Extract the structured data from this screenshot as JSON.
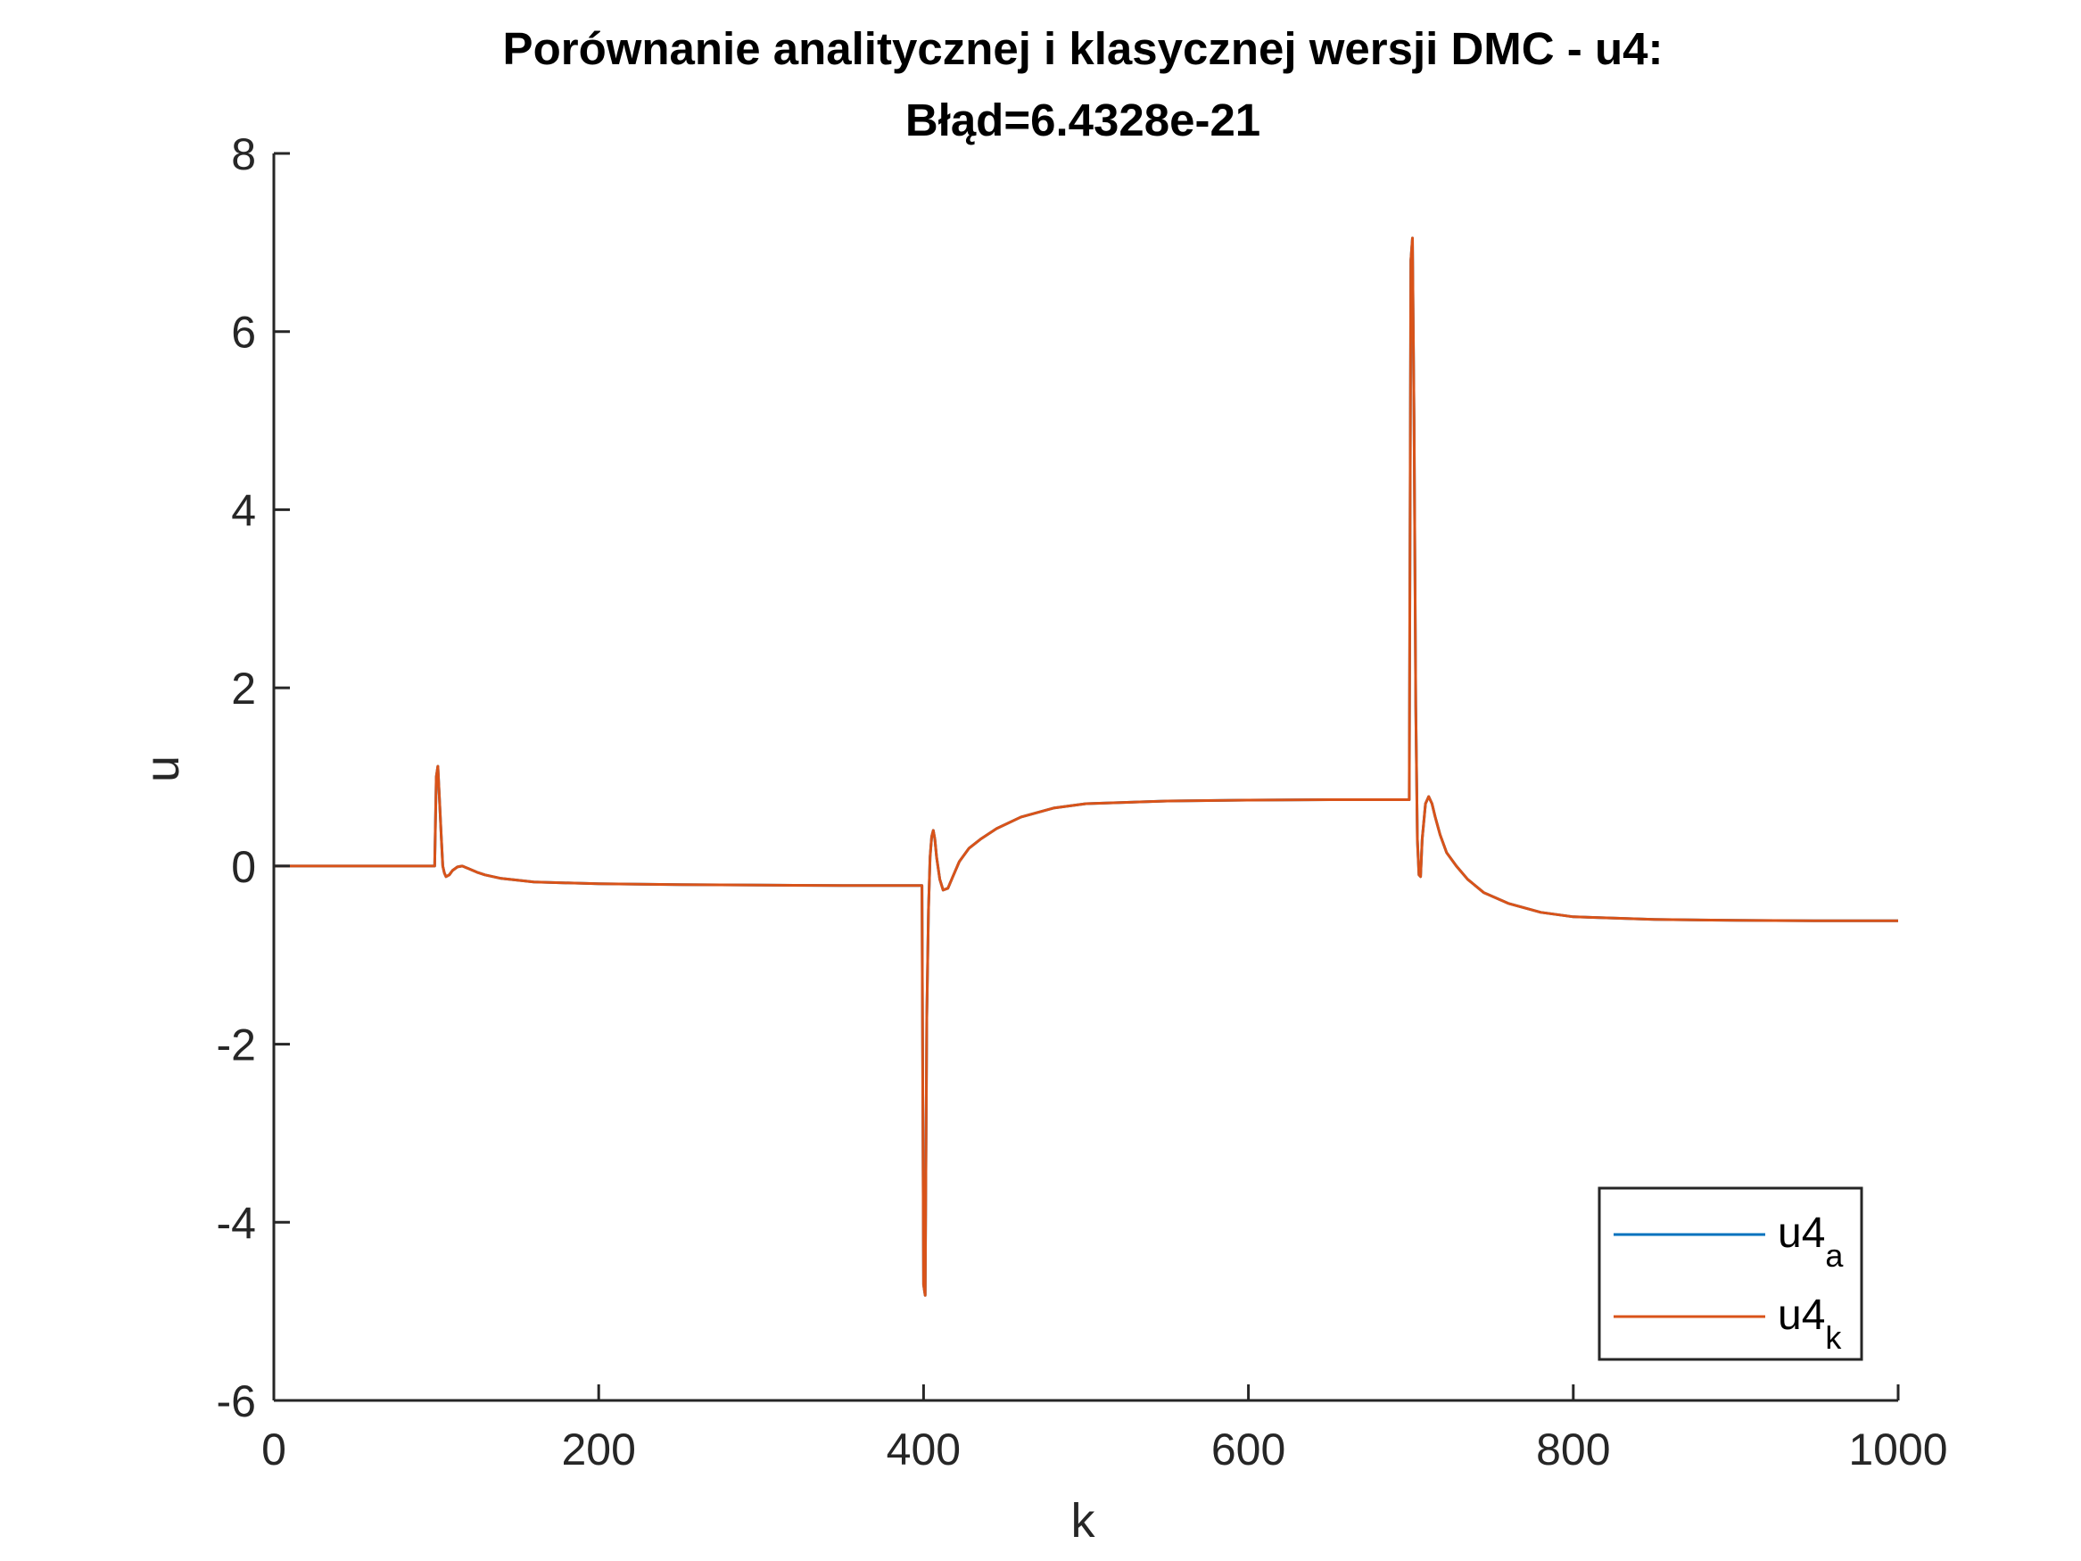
{
  "chart_data": {
    "type": "line",
    "title": [
      "Porównanie analitycznej i klasycznej wersji DMC - u4:",
      "Błąd=6.4328e-21"
    ],
    "xlabel": "k",
    "ylabel": "u",
    "xlim": [
      0,
      1000
    ],
    "ylim": [
      -6,
      8
    ],
    "xticks": [
      0,
      200,
      400,
      600,
      800,
      1000
    ],
    "yticks": [
      -6,
      -4,
      -2,
      0,
      2,
      4,
      6,
      8
    ],
    "grid": false,
    "legend_position": "bottom-right",
    "series": [
      {
        "name": "u4",
        "name_subscript": "a",
        "color": "#0072BD",
        "x": [
          0,
          99,
          100,
          101,
          102,
          103,
          104,
          105,
          106,
          108,
          110,
          113,
          116,
          120,
          125,
          130,
          140,
          160,
          200,
          250,
          300,
          350,
          399,
          400,
          401,
          402,
          403,
          404,
          405,
          406,
          407,
          408,
          410,
          412,
          415,
          418,
          422,
          428,
          435,
          445,
          460,
          480,
          500,
          550,
          600,
          650,
          699,
          700,
          701,
          702,
          703,
          704,
          705,
          706,
          707,
          709,
          711,
          713,
          715,
          718,
          722,
          728,
          735,
          745,
          760,
          780,
          800,
          850,
          900,
          950,
          1000
        ],
        "y": [
          0,
          0,
          1.0,
          1.12,
          0.75,
          0.35,
          0.0,
          -0.08,
          -0.12,
          -0.1,
          -0.05,
          -0.01,
          0.0,
          -0.03,
          -0.07,
          -0.1,
          -0.14,
          -0.18,
          -0.2,
          -0.21,
          -0.215,
          -0.22,
          -0.22,
          -4.7,
          -4.82,
          -1.7,
          -0.5,
          0.1,
          0.33,
          0.4,
          0.3,
          0.1,
          -0.15,
          -0.27,
          -0.25,
          -0.12,
          0.05,
          0.2,
          0.3,
          0.42,
          0.55,
          0.65,
          0.7,
          0.73,
          0.74,
          0.745,
          0.745,
          6.8,
          7.05,
          5.0,
          1.8,
          0.3,
          -0.1,
          -0.12,
          0.3,
          0.7,
          0.78,
          0.7,
          0.55,
          0.35,
          0.15,
          0.0,
          -0.15,
          -0.3,
          -0.42,
          -0.52,
          -0.57,
          -0.6,
          -0.61,
          -0.615,
          -0.615
        ]
      },
      {
        "name": "u4",
        "name_subscript": "k",
        "color": "#D95319",
        "x": [
          0,
          99,
          100,
          101,
          102,
          103,
          104,
          105,
          106,
          108,
          110,
          113,
          116,
          120,
          125,
          130,
          140,
          160,
          200,
          250,
          300,
          350,
          399,
          400,
          401,
          402,
          403,
          404,
          405,
          406,
          407,
          408,
          410,
          412,
          415,
          418,
          422,
          428,
          435,
          445,
          460,
          480,
          500,
          550,
          600,
          650,
          699,
          700,
          701,
          702,
          703,
          704,
          705,
          706,
          707,
          709,
          711,
          713,
          715,
          718,
          722,
          728,
          735,
          745,
          760,
          780,
          800,
          850,
          900,
          950,
          1000
        ],
        "y": [
          0,
          0,
          1.0,
          1.12,
          0.75,
          0.35,
          0.0,
          -0.08,
          -0.12,
          -0.1,
          -0.05,
          -0.01,
          0.0,
          -0.03,
          -0.07,
          -0.1,
          -0.14,
          -0.18,
          -0.2,
          -0.21,
          -0.215,
          -0.22,
          -0.22,
          -4.7,
          -4.82,
          -1.7,
          -0.5,
          0.1,
          0.33,
          0.4,
          0.3,
          0.1,
          -0.15,
          -0.27,
          -0.25,
          -0.12,
          0.05,
          0.2,
          0.3,
          0.42,
          0.55,
          0.65,
          0.7,
          0.73,
          0.74,
          0.745,
          0.745,
          6.8,
          7.05,
          5.0,
          1.8,
          0.3,
          -0.1,
          -0.12,
          0.3,
          0.7,
          0.78,
          0.7,
          0.55,
          0.35,
          0.15,
          0.0,
          -0.15,
          -0.3,
          -0.42,
          -0.52,
          -0.57,
          -0.6,
          -0.61,
          -0.615,
          -0.615
        ]
      }
    ]
  }
}
